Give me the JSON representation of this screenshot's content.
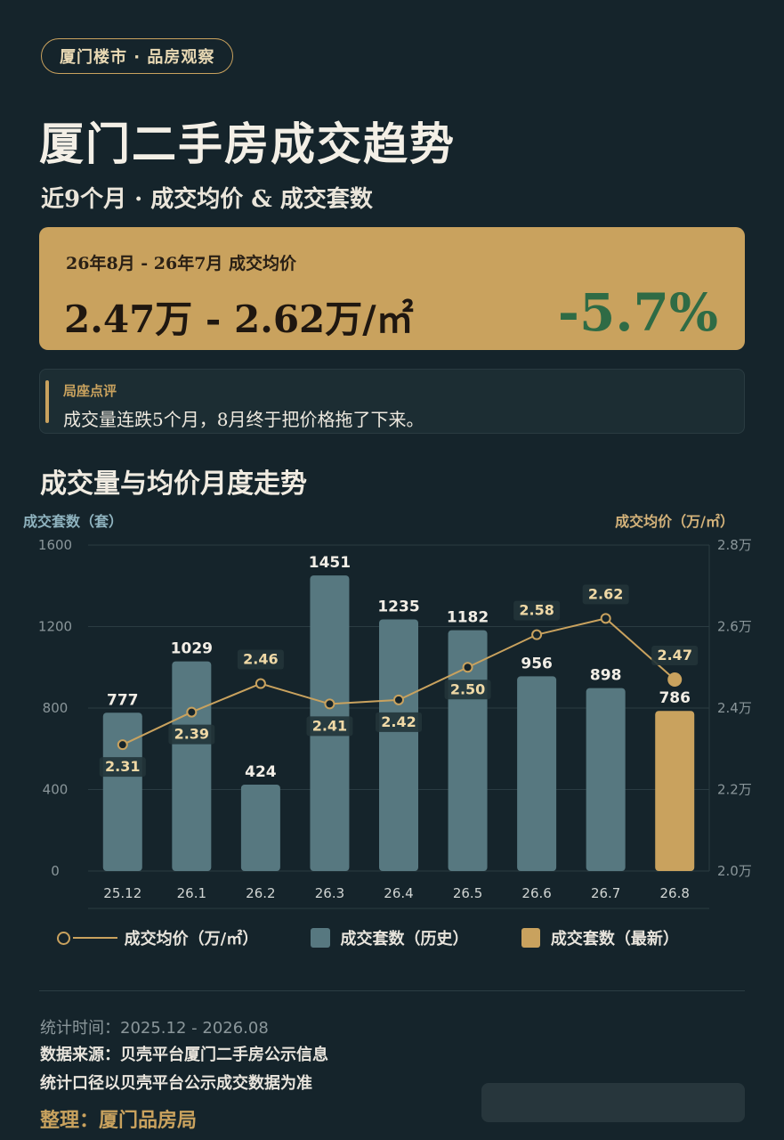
{
  "header": {
    "pill": "厦门楼市 · 品房观察",
    "title": "厦门二手房成交趋势",
    "subtitle": "近9个月 · 成交均价 & 成交套数"
  },
  "price_card": {
    "range_label": "26年8月 - 26年7月 成交均价",
    "range": "2.47万 - 2.62万/㎡",
    "change": "-5.7%",
    "change_color": "#2f6b45",
    "bg_color": "#c9a25e"
  },
  "comment": {
    "label": "局座点评",
    "text": "成交量连跌5个月，8月终于把价格拖了下来。"
  },
  "section_title": "成交量与均价月度走势",
  "chart_data": {
    "type": "bar",
    "categories": [
      "25.12",
      "26.1",
      "26.2",
      "26.3",
      "26.4",
      "26.5",
      "26.6",
      "26.7",
      "26.8"
    ],
    "series": [
      {
        "name": "成交套数",
        "kind": "bar",
        "axis": "left",
        "values": [
          777,
          1029,
          424,
          1451,
          1235,
          1182,
          956,
          898,
          786
        ],
        "colors": [
          "#577880",
          "#577880",
          "#577880",
          "#577880",
          "#577880",
          "#577880",
          "#577880",
          "#577880",
          "#c9a25e"
        ]
      },
      {
        "name": "成交均价（万/㎡）",
        "kind": "line",
        "axis": "right",
        "values": [
          2.31,
          2.39,
          2.46,
          2.41,
          2.42,
          2.5,
          2.58,
          2.62,
          2.47
        ],
        "labels": [
          "2.31",
          "2.39",
          "2.46",
          "2.41",
          "2.42",
          "2.50",
          "2.58",
          "2.62",
          "2.47"
        ],
        "color": "#c9a25e"
      }
    ],
    "ylabel": "成交套数（套）",
    "y2label": "成交均价（万/㎡）",
    "ylim": [
      0,
      1600
    ],
    "y2lim": [
      2.0,
      2.8
    ],
    "yticks": [
      "0",
      "400",
      "800",
      "1200",
      "1600"
    ],
    "y2ticks": [
      "2.0万",
      "2.2万",
      "2.4万",
      "2.6万",
      "2.8万"
    ],
    "grid": true,
    "legend": "bottom"
  },
  "legend": {
    "line": "成交均价（万/㎡）",
    "bar_history": "成交套数（历史）",
    "bar_latest": "成交套数（最新）",
    "history_color": "#577880",
    "latest_color": "#c9a25e"
  },
  "footer": {
    "period": "统计时间：2025.12 - 2026.08",
    "source": "数据来源：贝壳平台厦门二手房公示信息",
    "scope": "统计口径以贝壳平台公示成交数据为准",
    "author": "整理：厦门品房局"
  }
}
